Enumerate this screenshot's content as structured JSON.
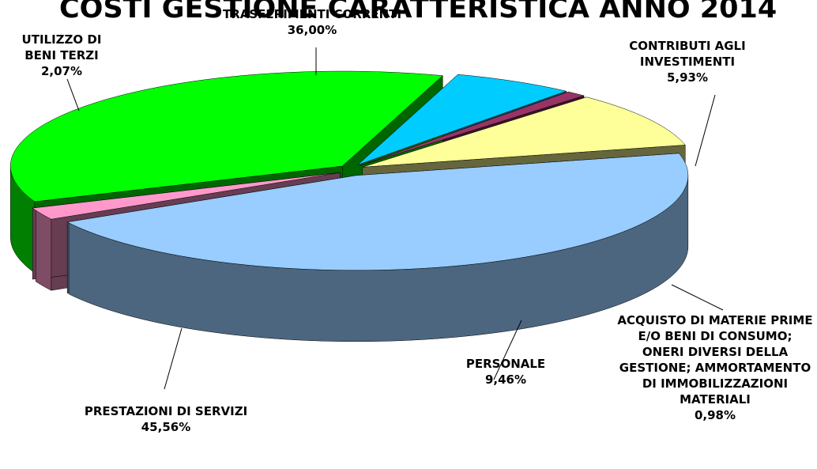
{
  "chart_data": {
    "type": "pie3d",
    "title": "COSTI GESTIONE CARATTERISTICA ANNO 2014",
    "categories": [
      "TRASFERIMENTI CORRENTI",
      "CONTRIBUTI AGLI INVESTIMENTI",
      "ACQUISTO DI MATERIE PRIME E/O BENI DI CONSUMO; ONERI DIVERSI DELLA GESTIONE; AMMORTAMENTO DI IMMOBILIZZAZIONI MATERIALI",
      "PERSONALE",
      "PRESTAZIONI DI SERVIZI",
      "UTILIZZO DI BENI TERZI"
    ],
    "values": [
      36.0,
      5.93,
      0.98,
      9.46,
      45.56,
      2.07
    ],
    "value_labels": [
      "36,00%",
      "5,93%",
      "0,98%",
      "9,46%",
      "45,56%",
      "2,07%"
    ],
    "colors": [
      "#00ff00",
      "#00ccff",
      "#993366",
      "#ffff99",
      "#99ccff",
      "#ff99cc"
    ]
  }
}
